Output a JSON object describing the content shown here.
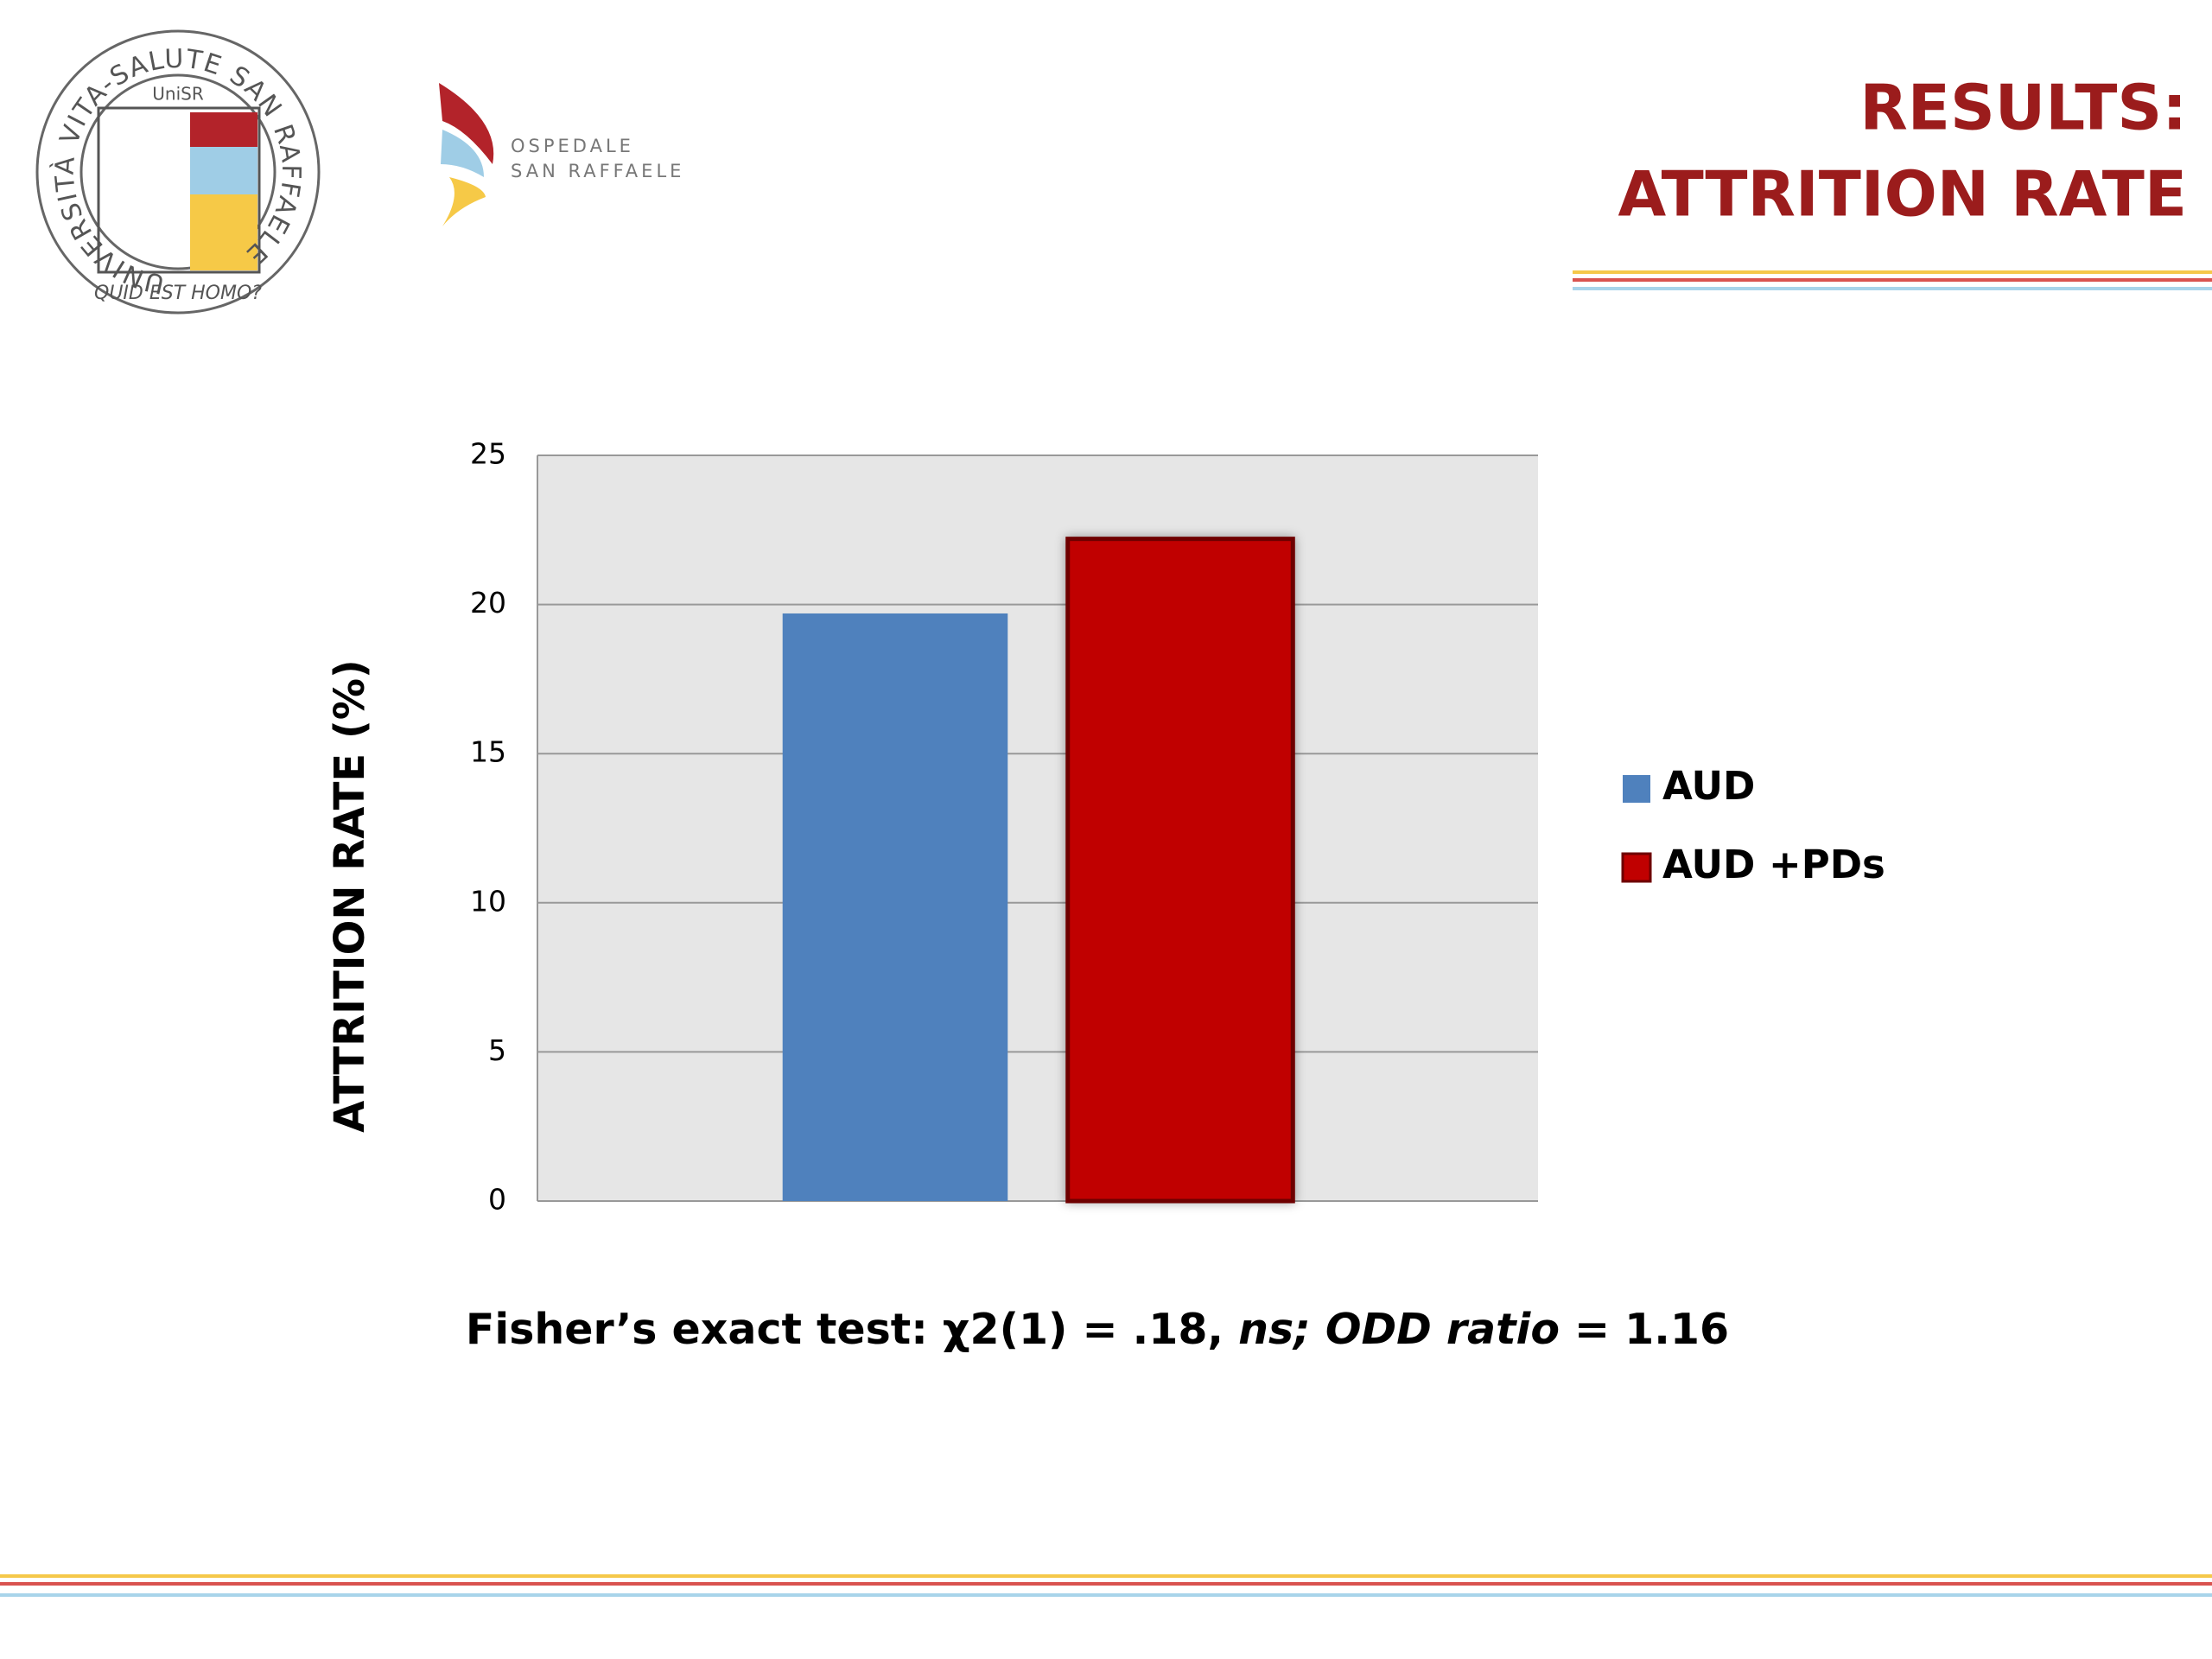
{
  "header": {
    "title_lines": [
      "RESULTS:",
      "ATTRITION RATE"
    ]
  },
  "logos": {
    "university": {
      "ring": "UNIVERSITÀ VITA-SALUTE SAN RAFFAELE",
      "short": "UniSR",
      "motto": "QUID EST HOMO?"
    },
    "hospital": [
      "OSPEDALE",
      "SAN RAFFAELE"
    ]
  },
  "chart_data": {
    "type": "bar",
    "ylabel": "ATTRITION RATE (%)",
    "categories": [
      null
    ],
    "series": [
      {
        "name": "AUD",
        "color": "#4f81bd",
        "values": [
          19.7
        ]
      },
      {
        "name": "AUD +PDs",
        "color": "#c00000",
        "values": [
          22.2
        ]
      }
    ],
    "ylim": [
      0,
      25
    ],
    "yticks": [
      0,
      5,
      10,
      15,
      20,
      25
    ],
    "grid": true,
    "legend": "right"
  },
  "footnote": {
    "parts": [
      {
        "text": "Fisher’s exact test: χ2(1) = .18, ",
        "italic": false
      },
      {
        "text": "ns; ODD ratio =",
        "italic": true
      },
      {
        "text": " 1.16",
        "italic": false
      }
    ]
  }
}
